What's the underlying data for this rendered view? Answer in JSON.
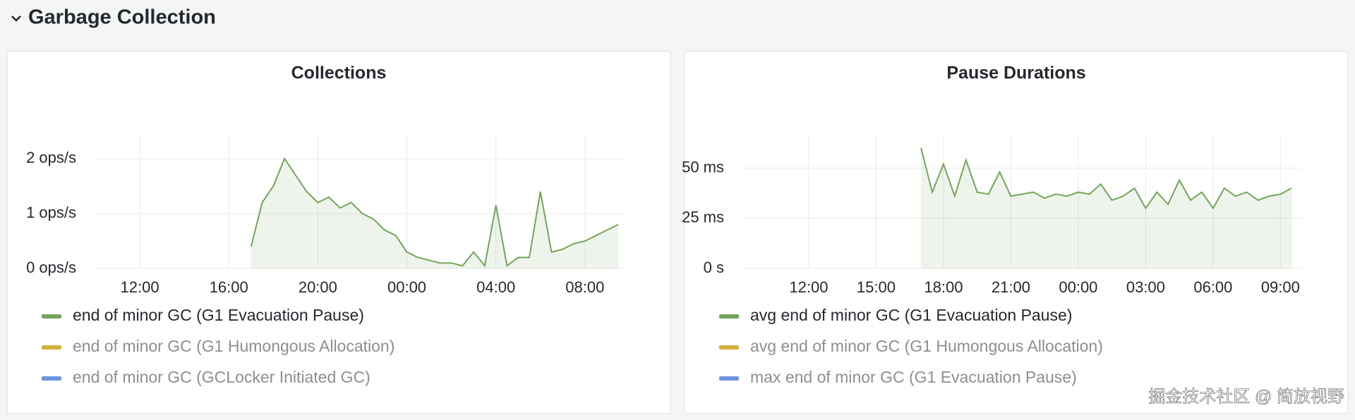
{
  "header": {
    "title": "Garbage Collection"
  },
  "watermark": "掘金技术社区 @ 简放视野",
  "chart_data": [
    {
      "type": "line",
      "title": "Collections",
      "x": [
        17.0,
        17.5,
        18.0,
        18.5,
        19.0,
        19.5,
        20.0,
        20.5,
        21.0,
        21.5,
        22.0,
        22.5,
        23.0,
        23.5,
        24.0,
        24.5,
        25.0,
        25.5,
        26.0,
        26.5,
        27.0,
        27.5,
        28.0,
        28.5,
        29.0,
        29.5,
        30.0,
        30.5,
        31.0,
        31.5,
        32.0,
        32.5,
        33.0,
        33.5
      ],
      "xlim": [
        10,
        33.75
      ],
      "xticks": [
        {
          "value": 12,
          "label": "12:00"
        },
        {
          "value": 16,
          "label": "16:00"
        },
        {
          "value": 20,
          "label": "20:00"
        },
        {
          "value": 24,
          "label": "00:00"
        },
        {
          "value": 28,
          "label": "04:00"
        },
        {
          "value": 32,
          "label": "08:00"
        }
      ],
      "ylim": [
        0,
        2.45
      ],
      "yticks": [
        {
          "value": 0,
          "label": "0 ops/s"
        },
        {
          "value": 1,
          "label": "1 ops/s"
        },
        {
          "value": 2,
          "label": "2 ops/s"
        }
      ],
      "grid": true,
      "series": [
        {
          "name": "end of minor GC (G1 Evacuation Pause)",
          "color": "#73a55a",
          "values": [
            0.4,
            1.2,
            1.5,
            2.0,
            1.7,
            1.4,
            1.2,
            1.3,
            1.1,
            1.2,
            1.0,
            0.9,
            0.7,
            0.6,
            0.3,
            0.2,
            0.15,
            0.1,
            0.1,
            0.05,
            0.3,
            0.05,
            1.15,
            0.05,
            0.2,
            0.2,
            1.4,
            0.3,
            0.35,
            0.45,
            0.5,
            0.6,
            0.7,
            0.8
          ]
        },
        {
          "name": "end of minor GC (G1 Humongous Allocation)",
          "color": "#d4b13b",
          "dimmed": true
        },
        {
          "name": "end of minor GC (GCLocker Initiated GC)",
          "color": "#6c94e0",
          "dimmed": true
        }
      ]
    },
    {
      "type": "line",
      "title": "Pause Durations",
      "x": [
        17.0,
        17.5,
        18.0,
        18.5,
        19.0,
        19.5,
        20.0,
        20.5,
        21.0,
        21.5,
        22.0,
        22.5,
        23.0,
        23.5,
        24.0,
        24.5,
        25.0,
        25.5,
        26.0,
        26.5,
        27.0,
        27.5,
        28.0,
        28.5,
        29.0,
        29.5,
        30.0,
        30.5,
        31.0,
        31.5,
        32.0,
        32.5,
        33.0,
        33.5
      ],
      "xlim": [
        9.08,
        33.9
      ],
      "xticks": [
        {
          "value": 12,
          "label": "12:00"
        },
        {
          "value": 15,
          "label": "15:00"
        },
        {
          "value": 18,
          "label": "18:00"
        },
        {
          "value": 21,
          "label": "21:00"
        },
        {
          "value": 24,
          "label": "00:00"
        },
        {
          "value": 27,
          "label": "03:00"
        },
        {
          "value": 30,
          "label": "06:00"
        },
        {
          "value": 33,
          "label": "09:00"
        }
      ],
      "ylim": [
        0,
        67
      ],
      "yticks": [
        {
          "value": 0,
          "label": "0 s"
        },
        {
          "value": 25,
          "label": "25 ms"
        },
        {
          "value": 50,
          "label": "50 ms"
        }
      ],
      "grid": true,
      "series": [
        {
          "name": "avg end of minor GC (G1 Evacuation Pause)",
          "color": "#73a55a",
          "values": [
            60,
            38,
            52,
            36,
            54,
            38,
            37,
            48,
            36,
            37,
            38,
            35,
            37,
            36,
            38,
            37,
            42,
            34,
            36,
            40,
            30,
            38,
            32,
            44,
            34,
            38,
            30,
            40,
            36,
            38,
            34,
            36,
            37,
            40
          ]
        },
        {
          "name": "avg end of minor GC (G1 Humongous Allocation)",
          "color": "#d4b13b",
          "dimmed": true
        },
        {
          "name": "max end of minor GC (G1 Evacuation Pause)",
          "color": "#6c94e0",
          "dimmed": true
        }
      ]
    }
  ]
}
